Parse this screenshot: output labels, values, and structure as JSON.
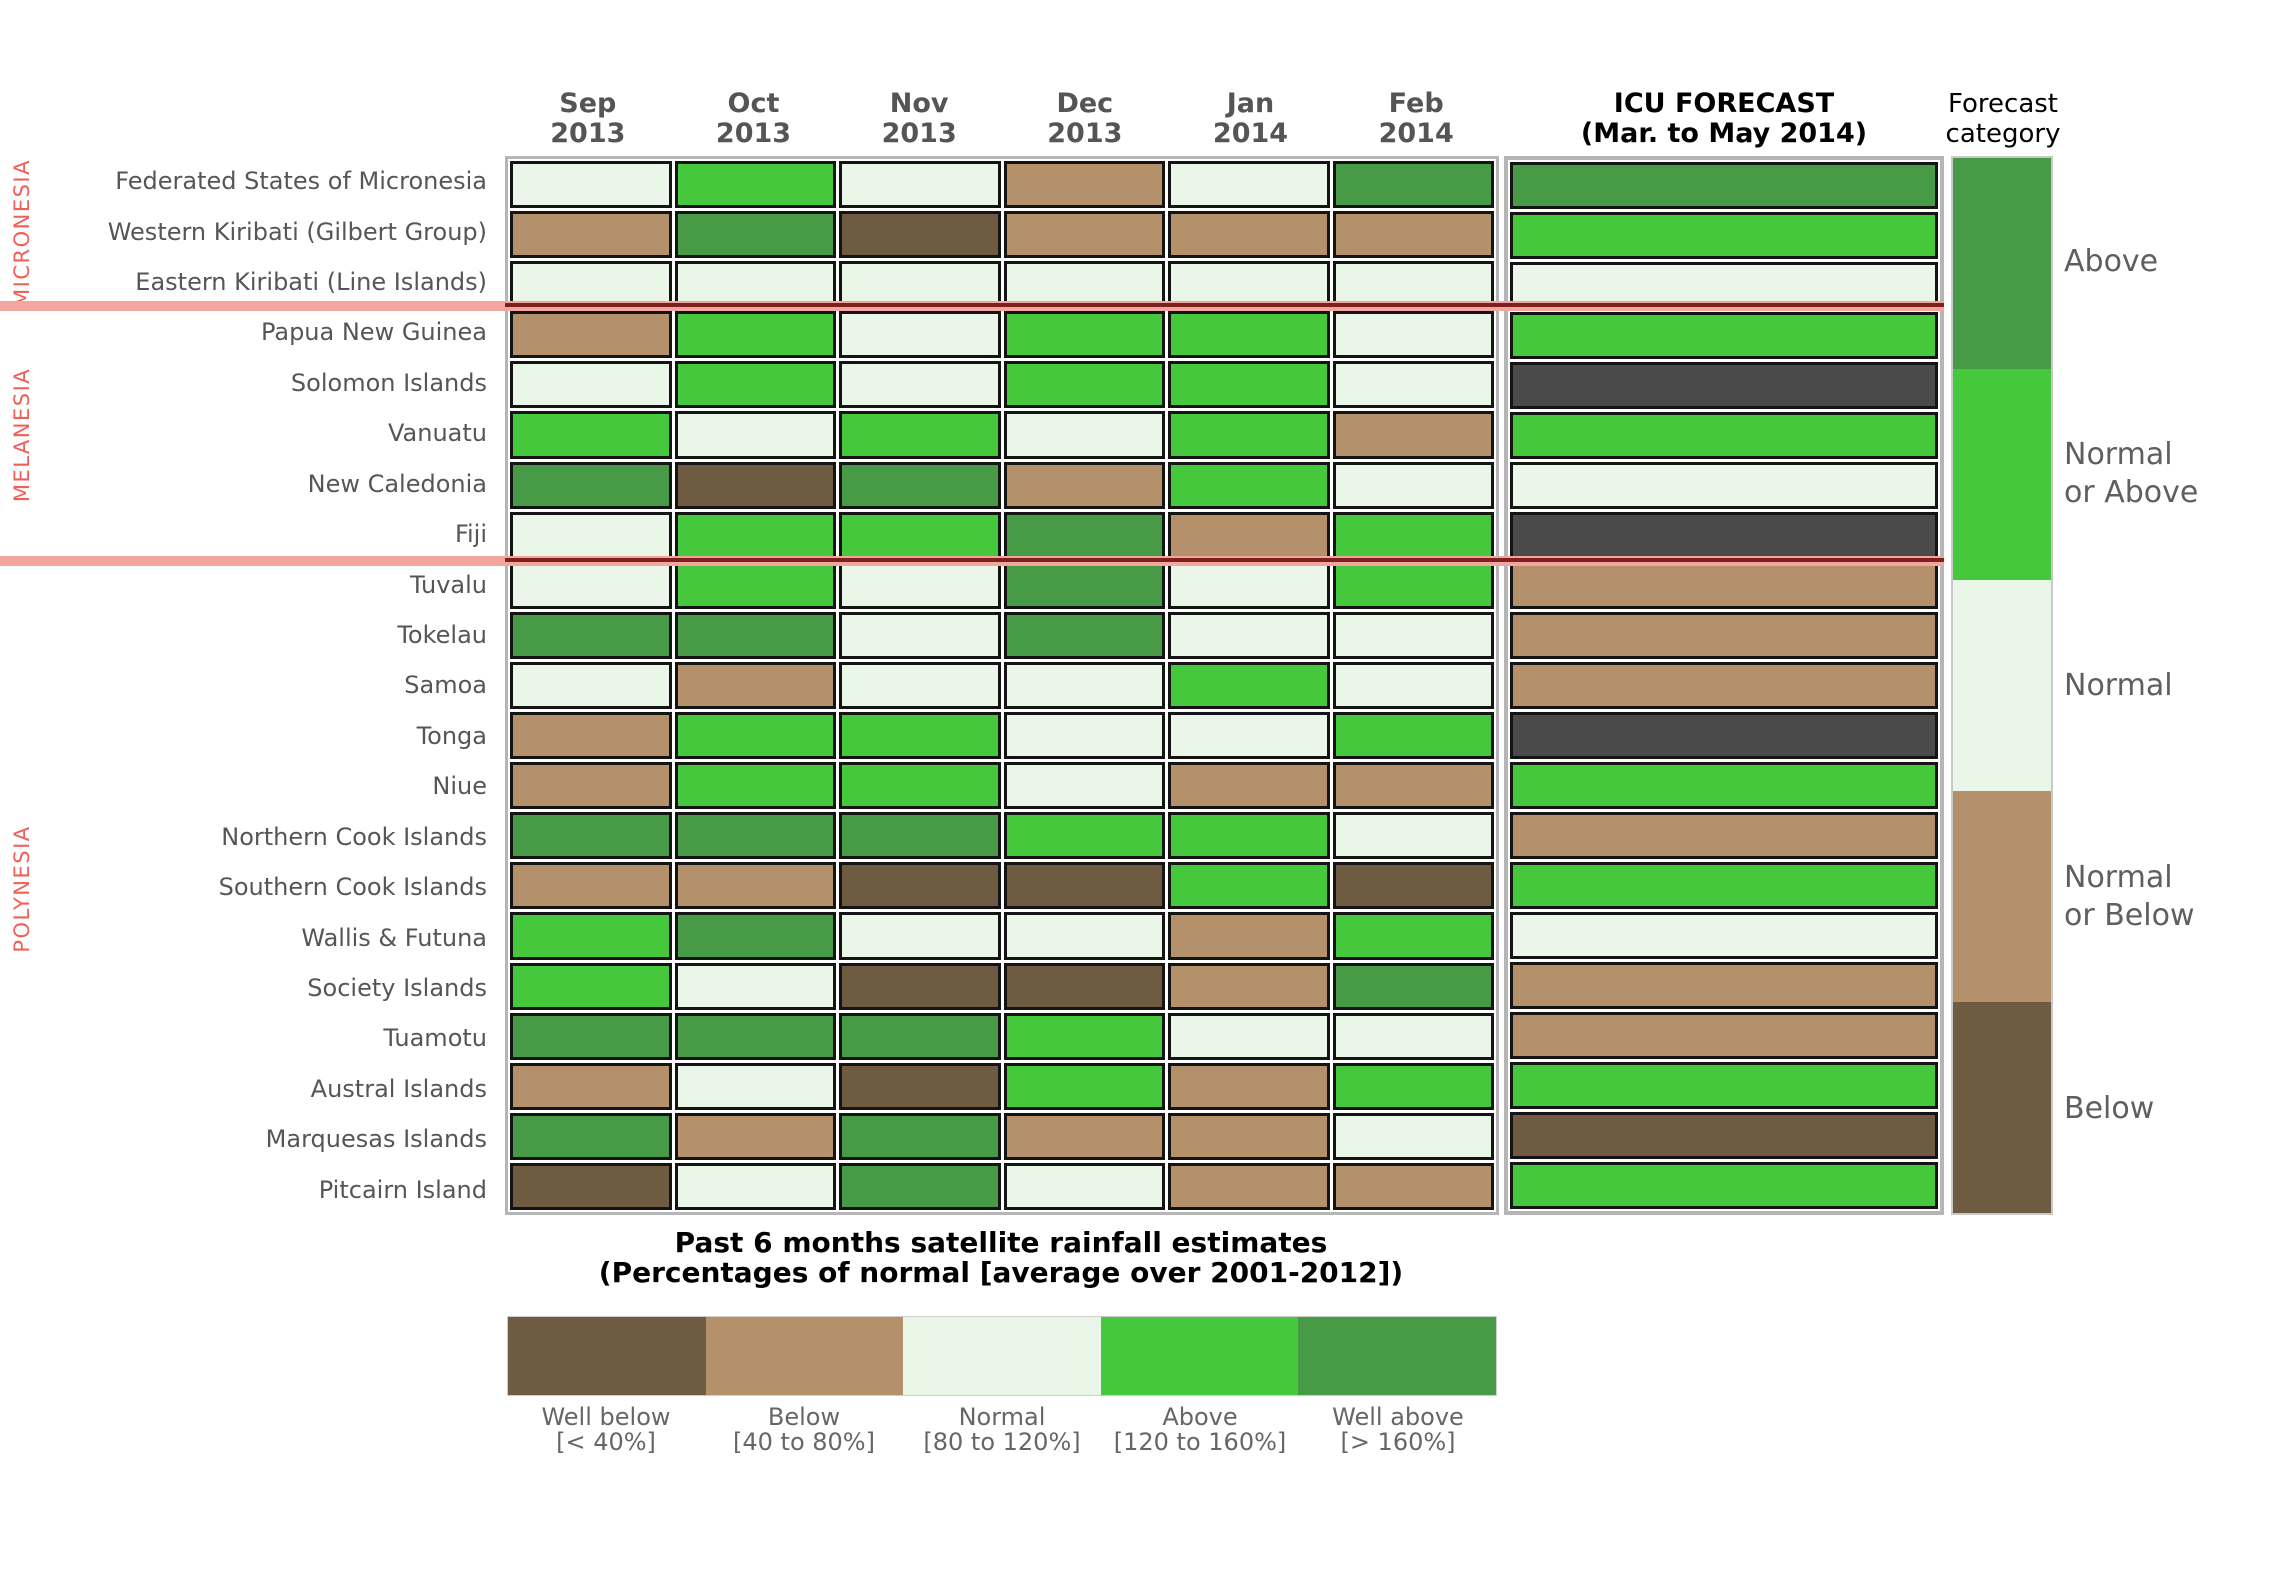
{
  "palette": {
    "well_below": "#6f5b41",
    "below": "#b4916b",
    "normal": "#e9f6e8",
    "above": "#46c83d",
    "well_above": "#479b47",
    "no_forecast": "#4a4a4a"
  },
  "accent": {
    "region_label_color": "#f05f58",
    "separator_band": "#f3a6a0",
    "separator_core": "#7c211b",
    "grid_border": "#141414",
    "frame_border": "#b5b5b5"
  },
  "header": {
    "months": [
      {
        "line1": "Sep",
        "line2": "2013"
      },
      {
        "line1": "Oct",
        "line2": "2013"
      },
      {
        "line1": "Nov",
        "line2": "2013"
      },
      {
        "line1": "Dec",
        "line2": "2013"
      },
      {
        "line1": "Jan",
        "line2": "2014"
      },
      {
        "line1": "Feb",
        "line2": "2014"
      }
    ],
    "icu_title_line1": "ICU FORECAST",
    "icu_title_line2": "(Mar. to May 2014)",
    "forecast_category_line1": "Forecast",
    "forecast_category_line2": "category"
  },
  "regions": [
    {
      "label": "MICRONESIA"
    },
    {
      "label": "MELANESIA"
    },
    {
      "label": "POLYNESIA"
    }
  ],
  "forecast_category_legend": [
    {
      "category": "well_above",
      "line1": "Above",
      "line2": null
    },
    {
      "category": "above",
      "line1": "Normal",
      "line2": "or Above"
    },
    {
      "category": "normal",
      "line1": "Normal",
      "line2": null
    },
    {
      "category": "below",
      "line1": "Normal",
      "line2": "or Below"
    },
    {
      "category": "well_below",
      "line1": "Below",
      "line2": null
    }
  ],
  "bottom_legend": {
    "title_line1": "Past 6 months satellite rainfall estimates",
    "title_line2": "(Percentages of normal [average over 2001-2012])",
    "items": [
      {
        "category": "well_below",
        "line1": "Well below",
        "line2": "[< 40%]"
      },
      {
        "category": "below",
        "line1": "Below",
        "line2": "[40 to 80%]"
      },
      {
        "category": "normal",
        "line1": "Normal",
        "line2": "[80 to 120%]"
      },
      {
        "category": "above",
        "line1": "Above",
        "line2": "[120 to 160%]"
      },
      {
        "category": "well_above",
        "line1": "Well above",
        "line2": "[> 160%]"
      }
    ]
  },
  "chart_data": {
    "type": "heatmap",
    "columns": [
      "Sep 2013",
      "Oct 2013",
      "Nov 2013",
      "Dec 2013",
      "Jan 2014",
      "Feb 2014"
    ],
    "forecast_column": "ICU FORECAST (Mar. to May 2014)",
    "value_scale": [
      {
        "code": "well_below",
        "label": "Well below",
        "range": "< 40%"
      },
      {
        "code": "below",
        "label": "Below",
        "range": "40 to 80%"
      },
      {
        "code": "normal",
        "label": "Normal",
        "range": "80 to 120%"
      },
      {
        "code": "above",
        "label": "Above",
        "range": "120 to 160%"
      },
      {
        "code": "well_above",
        "label": "Well above",
        "range": "> 160%"
      },
      {
        "code": "no_forecast",
        "label": "No category (dark gray)",
        "range": ""
      }
    ],
    "forecast_categories": [
      "Above",
      "Normal or Above",
      "Normal",
      "Normal or Below",
      "Below"
    ],
    "rows": [
      {
        "region": "Micronesia",
        "name": "Federated States of Micronesia",
        "values": [
          "normal",
          "above",
          "normal",
          "below",
          "normal",
          "well_above"
        ],
        "icu_forecast": "well_above"
      },
      {
        "region": "Micronesia",
        "name": "Western Kiribati (Gilbert Group)",
        "values": [
          "below",
          "well_above",
          "well_below",
          "below",
          "below",
          "below"
        ],
        "icu_forecast": "above"
      },
      {
        "region": "Micronesia",
        "name": "Eastern Kiribati (Line Islands)",
        "values": [
          "normal",
          "normal",
          "normal",
          "normal",
          "normal",
          "normal"
        ],
        "icu_forecast": "normal"
      },
      {
        "region": "Melanesia",
        "name": "Papua New Guinea",
        "values": [
          "below",
          "above",
          "normal",
          "above",
          "above",
          "normal"
        ],
        "icu_forecast": "above"
      },
      {
        "region": "Melanesia",
        "name": "Solomon Islands",
        "values": [
          "normal",
          "above",
          "normal",
          "above",
          "above",
          "normal"
        ],
        "icu_forecast": "no_forecast"
      },
      {
        "region": "Melanesia",
        "name": "Vanuatu",
        "values": [
          "above",
          "normal",
          "above",
          "normal",
          "above",
          "below"
        ],
        "icu_forecast": "above"
      },
      {
        "region": "Melanesia",
        "name": "New Caledonia",
        "values": [
          "well_above",
          "well_below",
          "well_above",
          "below",
          "above",
          "normal"
        ],
        "icu_forecast": "normal"
      },
      {
        "region": "Melanesia",
        "name": "Fiji",
        "values": [
          "normal",
          "above",
          "above",
          "well_above",
          "below",
          "above"
        ],
        "icu_forecast": "no_forecast"
      },
      {
        "region": "Polynesia",
        "name": "Tuvalu",
        "values": [
          "normal",
          "above",
          "normal",
          "well_above",
          "normal",
          "above"
        ],
        "icu_forecast": "below"
      },
      {
        "region": "Polynesia",
        "name": "Tokelau",
        "values": [
          "well_above",
          "well_above",
          "normal",
          "well_above",
          "normal",
          "normal"
        ],
        "icu_forecast": "below"
      },
      {
        "region": "Polynesia",
        "name": "Samoa",
        "values": [
          "normal",
          "below",
          "normal",
          "normal",
          "above",
          "normal"
        ],
        "icu_forecast": "below"
      },
      {
        "region": "Polynesia",
        "name": "Tonga",
        "values": [
          "below",
          "above",
          "above",
          "normal",
          "normal",
          "above"
        ],
        "icu_forecast": "no_forecast"
      },
      {
        "region": "Polynesia",
        "name": "Niue",
        "values": [
          "below",
          "above",
          "above",
          "normal",
          "below",
          "below"
        ],
        "icu_forecast": "above"
      },
      {
        "region": "Polynesia",
        "name": "Northern Cook Islands",
        "values": [
          "well_above",
          "well_above",
          "well_above",
          "above",
          "above",
          "normal"
        ],
        "icu_forecast": "below"
      },
      {
        "region": "Polynesia",
        "name": "Southern Cook Islands",
        "values": [
          "below",
          "below",
          "well_below",
          "well_below",
          "above",
          "well_below"
        ],
        "icu_forecast": "above"
      },
      {
        "region": "Polynesia",
        "name": "Wallis & Futuna",
        "values": [
          "above",
          "well_above",
          "normal",
          "normal",
          "below",
          "above"
        ],
        "icu_forecast": "normal"
      },
      {
        "region": "Polynesia",
        "name": "Society Islands",
        "values": [
          "above",
          "normal",
          "well_below",
          "well_below",
          "below",
          "well_above"
        ],
        "icu_forecast": "below"
      },
      {
        "region": "Polynesia",
        "name": "Tuamotu",
        "values": [
          "well_above",
          "well_above",
          "well_above",
          "above",
          "normal",
          "normal"
        ],
        "icu_forecast": "below"
      },
      {
        "region": "Polynesia",
        "name": "Austral Islands",
        "values": [
          "below",
          "normal",
          "well_below",
          "above",
          "below",
          "above"
        ],
        "icu_forecast": "above"
      },
      {
        "region": "Polynesia",
        "name": "Marquesas Islands",
        "values": [
          "well_above",
          "below",
          "well_above",
          "below",
          "below",
          "normal"
        ],
        "icu_forecast": "well_below"
      },
      {
        "region": "Polynesia",
        "name": "Pitcairn Island",
        "values": [
          "well_below",
          "normal",
          "well_above",
          "normal",
          "below",
          "below"
        ],
        "icu_forecast": "above"
      }
    ]
  }
}
